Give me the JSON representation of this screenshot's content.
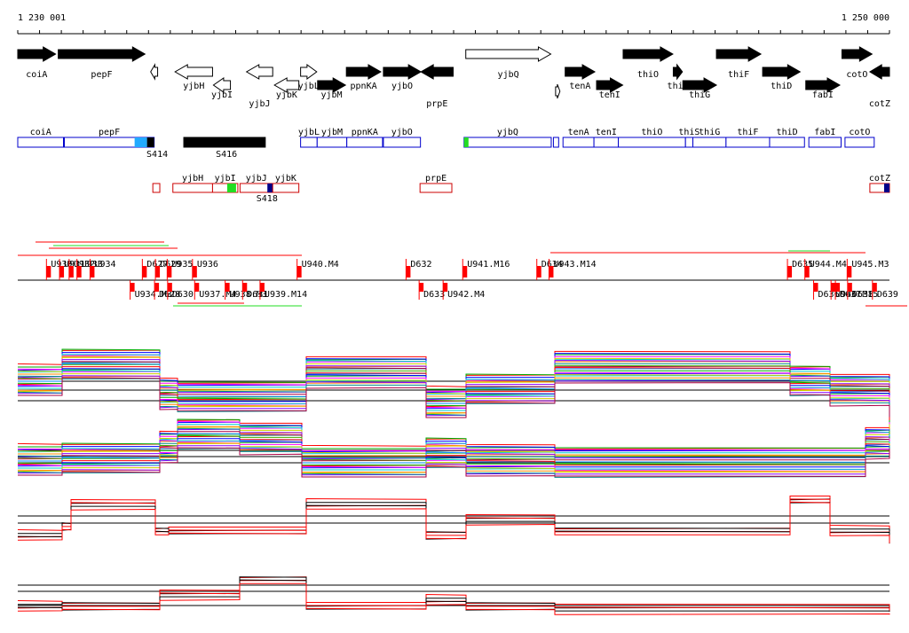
{
  "ruler": {
    "start_label": "1 230 001",
    "end_label": "1 250 000",
    "range": [
      1230001,
      1250000
    ]
  },
  "colors": {
    "gene_fill": "#000000",
    "gene_outline": "#000000",
    "fwd_box": "#0000cc",
    "rev_box": "#cc0000",
    "segment_red": "#ff0000",
    "s414": "#22aaff",
    "s418": "#000088",
    "marker_green": "#22dd22",
    "track_black": "#000000",
    "track_red": "#ff0000"
  },
  "genes": [
    {
      "name": "coiA",
      "start": 1230001,
      "end": 1230870,
      "strand": "+",
      "filled": true,
      "row": 0
    },
    {
      "name": "pepF",
      "start": 1230930,
      "end": 1232920,
      "strand": "+",
      "filled": true,
      "row": 0
    },
    {
      "name": "",
      "start": 1233050,
      "end": 1233210,
      "strand": "-",
      "filled": false,
      "row": 1
    },
    {
      "name": "yjbH",
      "start": 1233610,
      "end": 1234470,
      "strand": "-",
      "filled": false,
      "row": 1
    },
    {
      "name": "yjbI",
      "start": 1234490,
      "end": 1234880,
      "strand": "-",
      "filled": false,
      "row": 2
    },
    {
      "name": "yjbJ",
      "start": 1235250,
      "end": 1235850,
      "strand": "-",
      "filled": false,
      "row": 3
    },
    {
      "name": "yjbK",
      "start": 1235890,
      "end": 1236450,
      "strand": "-",
      "filled": false,
      "row": 2
    },
    {
      "name": "yjbL",
      "start": 1236490,
      "end": 1236860,
      "strand": "+",
      "filled": false,
      "row": 1
    },
    {
      "name": "yjbM",
      "start": 1236880,
      "end": 1237520,
      "strand": "+",
      "filled": true,
      "row": 2
    },
    {
      "name": "ppnKA",
      "start": 1237540,
      "end": 1238330,
      "strand": "+",
      "filled": true,
      "row": 1
    },
    {
      "name": "yjbO",
      "start": 1238390,
      "end": 1239250,
      "strand": "+",
      "filled": true,
      "row": 1
    },
    {
      "name": "prpE",
      "start": 1239250,
      "end": 1239990,
      "strand": "-",
      "filled": true,
      "row": 3
    },
    {
      "name": "yjbQ",
      "start": 1240280,
      "end": 1242230,
      "strand": "+",
      "filled": false,
      "row": 0
    },
    {
      "name": "",
      "start": 1242340,
      "end": 1242440,
      "strand": "+",
      "filled": false,
      "row": 4
    },
    {
      "name": "tenA",
      "start": 1242560,
      "end": 1243240,
      "strand": "+",
      "filled": true,
      "row": 1
    },
    {
      "name": "tenI",
      "start": 1243280,
      "end": 1243880,
      "strand": "+",
      "filled": true,
      "row": 2
    },
    {
      "name": "thiO",
      "start": 1243890,
      "end": 1245030,
      "strand": "+",
      "filled": true,
      "row": 0
    },
    {
      "name": "thiS",
      "start": 1245040,
      "end": 1245250,
      "strand": "+",
      "filled": true,
      "row": 1
    },
    {
      "name": "thiG",
      "start": 1245260,
      "end": 1246030,
      "strand": "+",
      "filled": true,
      "row": 2
    },
    {
      "name": "thiF",
      "start": 1246030,
      "end": 1247050,
      "strand": "+",
      "filled": true,
      "row": 0
    },
    {
      "name": "thiD",
      "start": 1247090,
      "end": 1247950,
      "strand": "+",
      "filled": true,
      "row": 1
    },
    {
      "name": "fabI",
      "start": 1248080,
      "end": 1248860,
      "strand": "+",
      "filled": true,
      "row": 2
    },
    {
      "name": "cotO",
      "start": 1248910,
      "end": 1249600,
      "strand": "+",
      "filled": true,
      "row": 0
    },
    {
      "name": "cotZ",
      "start": 1249550,
      "end": 1250000,
      "strand": "-",
      "filled": true,
      "row": 3
    }
  ],
  "fwd_boxes": [
    {
      "name": "coiA",
      "start": 1230001,
      "end": 1231050
    },
    {
      "name": "pepF",
      "start": 1231070,
      "end": 1233130,
      "tail": "s414"
    },
    {
      "name": "",
      "start": 1233810,
      "end": 1235680,
      "filled": true
    },
    {
      "name": "yjbL",
      "start": 1236490,
      "end": 1236870
    },
    {
      "name": "yjbM",
      "start": 1236870,
      "end": 1237550
    },
    {
      "name": "ppnKA",
      "start": 1237550,
      "end": 1238370
    },
    {
      "name": "yjbO",
      "start": 1238390,
      "end": 1239240
    },
    {
      "name": "yjbQ",
      "start": 1240240,
      "end": 1242240,
      "head": "green"
    },
    {
      "name": "",
      "start": 1242290,
      "end": 1242410
    },
    {
      "name": "tenA",
      "start": 1242510,
      "end": 1243220
    },
    {
      "name": "tenI",
      "start": 1243220,
      "end": 1243780
    },
    {
      "name": "thiO",
      "start": 1243780,
      "end": 1245320
    },
    {
      "name": "thiS",
      "start": 1245320,
      "end": 1245490
    },
    {
      "name": "thiG",
      "start": 1245490,
      "end": 1246250
    },
    {
      "name": "thiF",
      "start": 1246250,
      "end": 1247250
    },
    {
      "name": "thiD",
      "start": 1247250,
      "end": 1248050
    },
    {
      "name": "fabI",
      "start": 1248150,
      "end": 1248890
    },
    {
      "name": "cotO",
      "start": 1248980,
      "end": 1249650
    }
  ],
  "fwd_labels": [
    {
      "text": "S414",
      "pos": 1233200
    },
    {
      "text": "S416",
      "pos": 1234790
    }
  ],
  "rev_boxes": [
    {
      "name": "",
      "start": 1233100,
      "end": 1233260
    },
    {
      "name": "yjbH",
      "start": 1233560,
      "end": 1234470
    },
    {
      "name": "yjbI",
      "start": 1234470,
      "end": 1235050,
      "tail": "green"
    },
    {
      "name": "yjbJ",
      "start": 1235100,
      "end": 1235850,
      "tail": "s418"
    },
    {
      "name": "yjbK",
      "start": 1235850,
      "end": 1236450
    },
    {
      "name": "prpE",
      "start": 1239230,
      "end": 1239960
    },
    {
      "name": "cotZ",
      "start": 1249550,
      "end": 1250000,
      "tail": "s418"
    }
  ],
  "rev_labels": [
    {
      "text": "S418",
      "pos": 1235720
    }
  ],
  "segments_upper": [
    {
      "text": "U930",
      "pos": 1230700
    },
    {
      "text": "U931",
      "pos": 1231000
    },
    {
      "text": "U932",
      "pos": 1231220
    },
    {
      "text": "U933",
      "pos": 1231400
    },
    {
      "text": "U934",
      "pos": 1231700
    },
    {
      "text": "D627",
      "pos": 1232900
    },
    {
      "text": "D629",
      "pos": 1233200
    },
    {
      "text": "U935",
      "pos": 1233470
    },
    {
      "text": "U936",
      "pos": 1234050
    },
    {
      "text": "U940.M4",
      "pos": 1236450
    },
    {
      "text": "D632",
      "pos": 1238950
    },
    {
      "text": "U941.M16",
      "pos": 1240250
    },
    {
      "text": "D634",
      "pos": 1241950
    },
    {
      "text": "U943.M14",
      "pos": 1242230
    },
    {
      "text": "D635",
      "pos": 1247700
    },
    {
      "text": "U944.M4",
      "pos": 1248100
    },
    {
      "text": "U945.M3",
      "pos": 1249070
    }
  ],
  "segments_lower": [
    {
      "text": "U934.M3",
      "pos": 1232620
    },
    {
      "text": "D628",
      "pos": 1233180
    },
    {
      "text": "D630",
      "pos": 1233480
    },
    {
      "text": "U937.M4",
      "pos": 1234100
    },
    {
      "text": "U938.M3",
      "pos": 1234800
    },
    {
      "text": "D631",
      "pos": 1235200
    },
    {
      "text": "U939.M14",
      "pos": 1235600
    },
    {
      "text": "D633",
      "pos": 1239250
    },
    {
      "text": "U942.M4",
      "pos": 1239800
    },
    {
      "text": "D636",
      "pos": 1248300
    },
    {
      "text": "U946.M15",
      "pos": 1248700
    },
    {
      "text": "D637",
      "pos": 1248800
    },
    {
      "text": "D638",
      "pos": 1249080
    },
    {
      "text": "D639",
      "pos": 1249650
    }
  ],
  "tracks": [
    {
      "name": "expression-panel-1",
      "multicolor": true
    },
    {
      "name": "expression-panel-2",
      "multicolor": true
    },
    {
      "name": "expression-panel-3",
      "multicolor": false
    },
    {
      "name": "expression-panel-4",
      "multicolor": false
    }
  ]
}
